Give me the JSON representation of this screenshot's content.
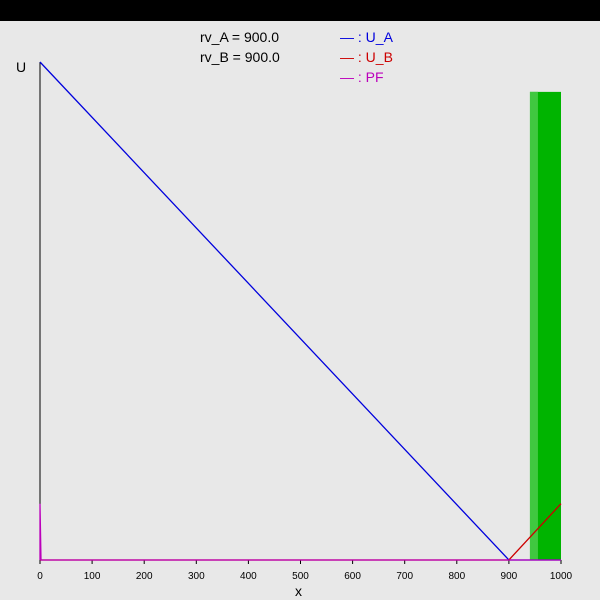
{
  "params": {
    "rv_a": "rv_A = 900.0",
    "rv_b": "rv_B = 900.0"
  },
  "chart_data": {
    "type": "line",
    "xlabel": "x",
    "ylabel": "U",
    "xlim": [
      0,
      1000
    ],
    "ylim": [
      0,
      1
    ],
    "xticks": [
      0,
      100,
      200,
      300,
      400,
      500,
      600,
      700,
      800,
      900,
      1000
    ],
    "series": [
      {
        "name": "U_A",
        "legend_label": "— : U_A",
        "color": "#0000dd",
        "x": [
          0,
          900,
          1000
        ],
        "y": [
          1,
          0,
          0
        ]
      },
      {
        "name": "U_B",
        "legend_label": "— : U_B",
        "color": "#cc0000",
        "x": [
          0,
          900,
          1000
        ],
        "y": [
          0,
          0,
          0.113
        ]
      },
      {
        "name": "PF",
        "legend_label": "— : PF",
        "color": "#bb00bb",
        "x": [
          0,
          0,
          2,
          1000
        ],
        "y": [
          0,
          0.113,
          0,
          0
        ]
      }
    ],
    "band": {
      "x_start": 950,
      "x_end": 1000,
      "y_top": 0.94,
      "color": "#00b400"
    }
  }
}
